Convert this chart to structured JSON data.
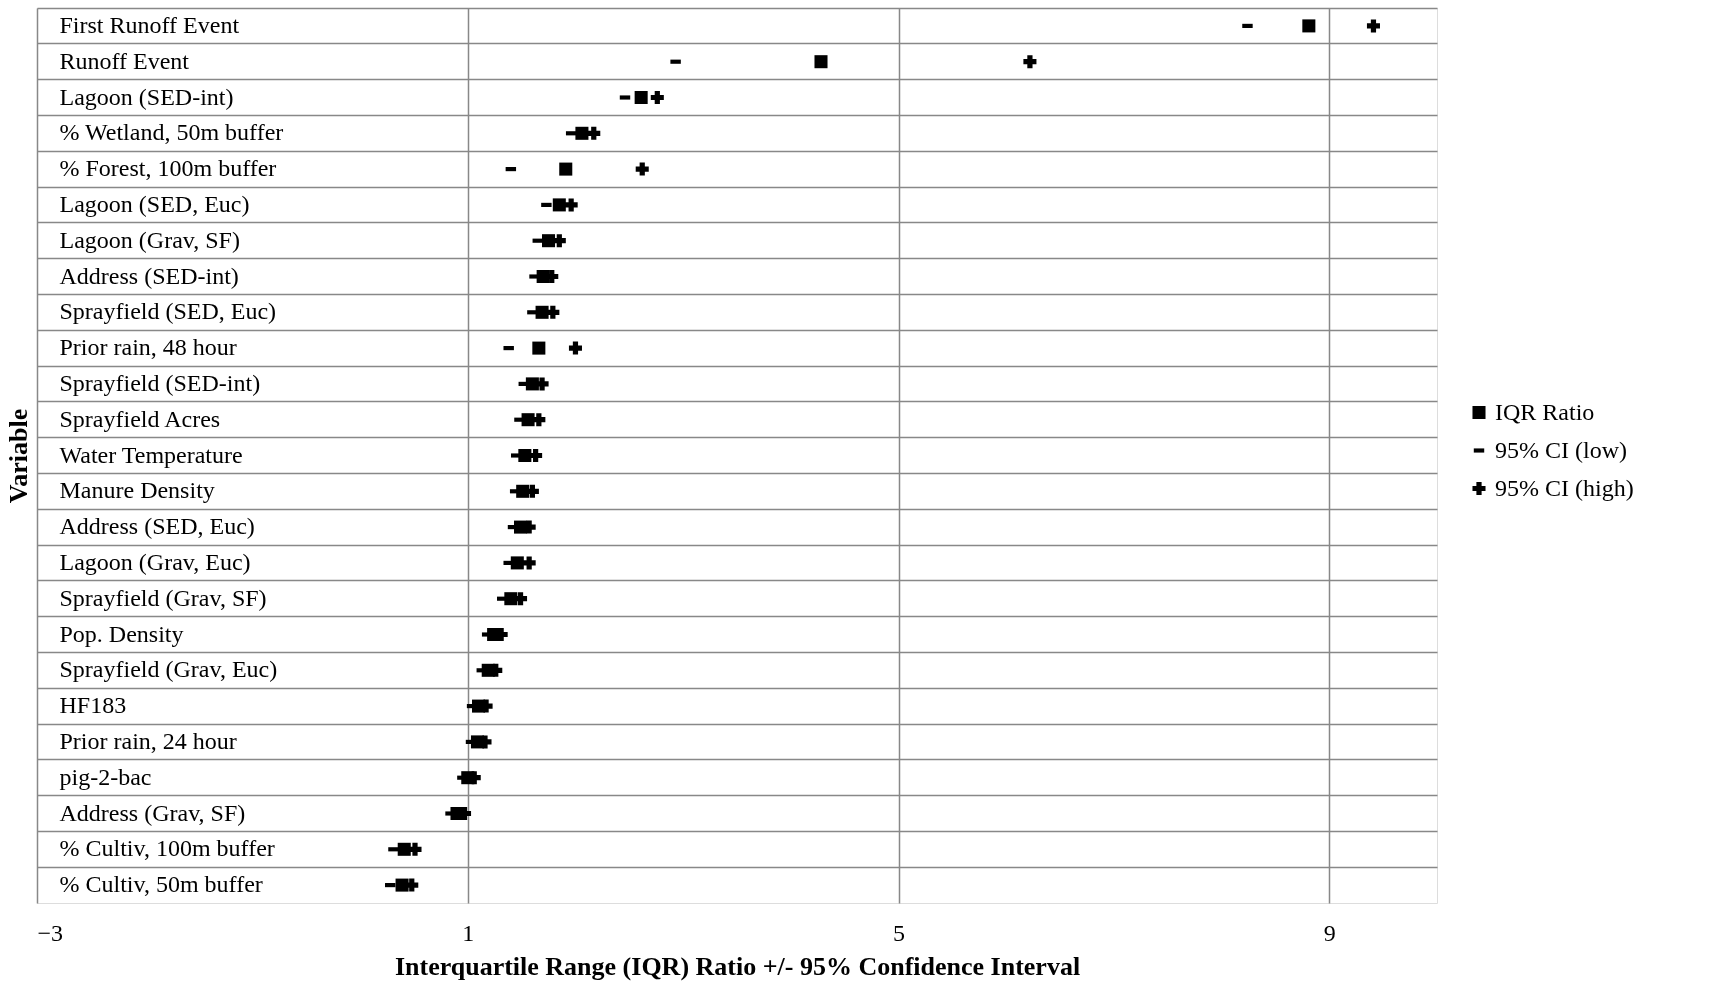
{
  "chart_data": {
    "type": "scatter",
    "orientation": "horizontal",
    "xlabel": "Interquartile Range (IQR) Ratio +/- 95% Confidence Interval",
    "ylabel": "Variable",
    "categories": [
      "First Runoff Event",
      "Runoff Event",
      "Lagoon (SED-int)",
      "% Wetland, 50m buffer",
      "% Forest, 100m buffer",
      "Lagoon (SED, Euc)",
      "Lagoon (Grav, SF)",
      "Address (SED-int)",
      "Sprayfield (SED, Euc)",
      "Prior rain, 48 hour",
      "Sprayfield (SED-int)",
      "Sprayfield Acres",
      "Water Temperature",
      "Manure Density",
      "Address (SED, Euc)",
      "Lagoon (Grav, Euc)",
      "Sprayfield (Grav, SF)",
      "Pop.  Density",
      "Sprayfield (Grav, Euc)",
      "HF183",
      "Prior rain, 24 hour",
      "pig-2-bac",
      "Address (Grav, SF)",
      "% Cultiv, 100m buffer",
      "% Cultiv, 50m buffer"
    ],
    "series": [
      {
        "name": "IQR Ratio",
        "color": "#000000",
        "marker": "square",
        "values": [
          8.81,
          4.28,
          2.61,
          2.06,
          1.91,
          1.85,
          1.75,
          1.7,
          1.69,
          1.66,
          1.6,
          1.56,
          1.53,
          1.51,
          1.49,
          1.46,
          1.4,
          1.24,
          1.19,
          1.1,
          1.09,
          1.0,
          0.9,
          0.41,
          0.39
        ]
      },
      {
        "name": "95% CI (low)",
        "color": "#000000",
        "values": [
          8.24,
          2.93,
          2.46,
          1.96,
          1.4,
          1.73,
          1.65,
          1.62,
          1.6,
          1.38,
          1.52,
          1.48,
          1.45,
          1.44,
          1.42,
          1.38,
          1.32,
          1.18,
          1.13,
          1.04,
          1.03,
          0.95,
          0.84,
          0.31,
          0.28
        ]
      },
      {
        "name": "95% CI (high)",
        "color": "#000000",
        "marker": "cross",
        "values": [
          9.41,
          6.22,
          2.76,
          2.17,
          2.62,
          1.96,
          1.85,
          1.78,
          1.79,
          2.0,
          1.69,
          1.66,
          1.63,
          1.6,
          1.57,
          1.57,
          1.49,
          1.31,
          1.26,
          1.17,
          1.16,
          1.06,
          0.97,
          0.51,
          0.48
        ]
      }
    ],
    "xlim": [
      -3,
      10
    ],
    "xticks": [
      -3,
      1,
      5,
      9
    ],
    "grid": true,
    "legend": "right"
  }
}
